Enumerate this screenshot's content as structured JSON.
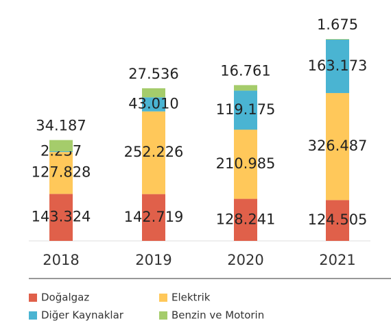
{
  "chart_data": {
    "type": "bar",
    "stacked": true,
    "categories": [
      "2018",
      "2019",
      "2020",
      "2021"
    ],
    "series": [
      {
        "name": "Doğalgaz",
        "color": "#e0604a",
        "values": [
          143324,
          142719,
          128241,
          124505
        ],
        "value_labels": [
          "143.324",
          "142.719",
          "128.241",
          "124.505"
        ]
      },
      {
        "name": "Elektrik",
        "color": "#ffc85a",
        "values": [
          127828,
          252226,
          210985,
          326487
        ],
        "value_labels": [
          "127.828",
          "252.226",
          "210.985",
          "326.487"
        ]
      },
      {
        "name": "Diğer Kaynaklar",
        "color": "#4ab4d2",
        "values": [
          2237,
          43010,
          119175,
          163173
        ],
        "value_labels": [
          "2.237",
          "43.010",
          "119.175",
          "163.173"
        ]
      },
      {
        "name": "Benzin ve Motorin",
        "color": "#a5cc6b",
        "values": [
          34187,
          27536,
          16761,
          1675
        ],
        "value_labels": [
          "34.187",
          "27.536",
          "16.761",
          "1.675"
        ]
      }
    ]
  }
}
